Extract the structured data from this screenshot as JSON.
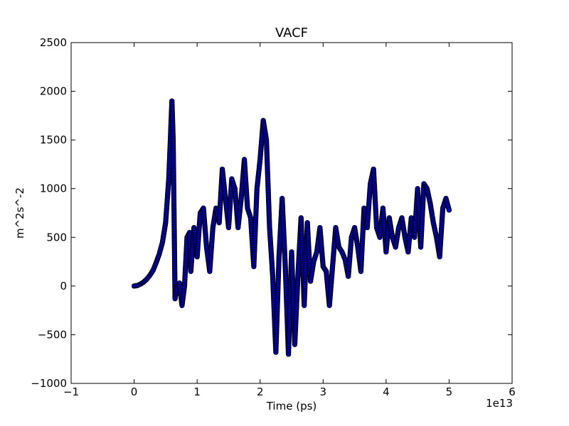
{
  "chart_data": {
    "type": "scatter",
    "title": "VACF",
    "xlabel": "Time (ps)",
    "ylabel": "m^2s^-2",
    "x_offset_label": "1e13",
    "xlim": [
      -1,
      6
    ],
    "ylim": [
      -1000,
      2500
    ],
    "xticks": [
      -1,
      0,
      1,
      2,
      3,
      4,
      5,
      6
    ],
    "xtick_labels": [
      "−1",
      "0",
      "1",
      "2",
      "3",
      "4",
      "5",
      "6"
    ],
    "yticks": [
      -1000,
      -500,
      0,
      500,
      1000,
      1500,
      2000,
      2500
    ],
    "ytick_labels": [
      "−1000",
      "−500",
      "0",
      "500",
      "1000",
      "1500",
      "2000",
      "2500"
    ],
    "grid": false,
    "marker_face_color": "#0000ff",
    "marker_edge_color": "#000000",
    "series": [
      {
        "x": [
          0.0,
          0.05,
          0.1,
          0.15,
          0.2,
          0.25,
          0.3,
          0.35,
          0.4,
          0.45,
          0.5,
          0.55,
          0.6,
          0.62,
          0.65,
          0.68,
          0.72,
          0.76,
          0.8,
          0.84,
          0.88,
          0.9,
          0.95,
          1.0,
          1.05,
          1.1,
          1.15,
          1.2,
          1.25,
          1.3,
          1.35,
          1.4,
          1.45,
          1.5,
          1.55,
          1.6,
          1.65,
          1.7,
          1.75,
          1.8,
          1.85,
          1.9,
          1.95,
          2.0,
          2.05,
          2.1,
          2.15,
          2.2,
          2.25,
          2.3,
          2.35,
          2.4,
          2.45,
          2.5,
          2.55,
          2.6,
          2.65,
          2.7,
          2.75,
          2.8,
          2.85,
          2.9,
          2.95,
          3.0,
          3.05,
          3.1,
          3.15,
          3.2,
          3.25,
          3.3,
          3.35,
          3.4,
          3.45,
          3.5,
          3.55,
          3.6,
          3.65,
          3.7,
          3.75,
          3.8,
          3.85,
          3.9,
          3.95,
          4.0,
          4.05,
          4.1,
          4.15,
          4.2,
          4.25,
          4.3,
          4.35,
          4.4,
          4.45,
          4.5,
          4.55,
          4.6,
          4.65,
          4.7,
          4.75,
          4.8,
          4.85,
          4.9,
          4.95,
          5.0
        ],
        "y": [
          0,
          5,
          20,
          40,
          70,
          110,
          160,
          240,
          330,
          450,
          650,
          1100,
          1900,
          1500,
          -130,
          0,
          30,
          -200,
          0,
          500,
          550,
          150,
          600,
          300,
          750,
          800,
          400,
          150,
          600,
          800,
          650,
          1200,
          900,
          600,
          1100,
          1000,
          600,
          900,
          1300,
          800,
          700,
          200,
          1000,
          1300,
          1700,
          1500,
          600,
          100,
          -680,
          300,
          900,
          200,
          -700,
          350,
          -600,
          100,
          700,
          -200,
          650,
          50,
          250,
          350,
          600,
          200,
          150,
          -200,
          200,
          600,
          400,
          350,
          270,
          100,
          500,
          600,
          400,
          150,
          800,
          600,
          1050,
          1200,
          600,
          500,
          800,
          350,
          700,
          500,
          400,
          600,
          700,
          500,
          350,
          700,
          500,
          1000,
          400,
          1050,
          1000,
          850,
          650,
          500,
          300,
          800,
          900,
          780
        ]
      }
    ]
  }
}
